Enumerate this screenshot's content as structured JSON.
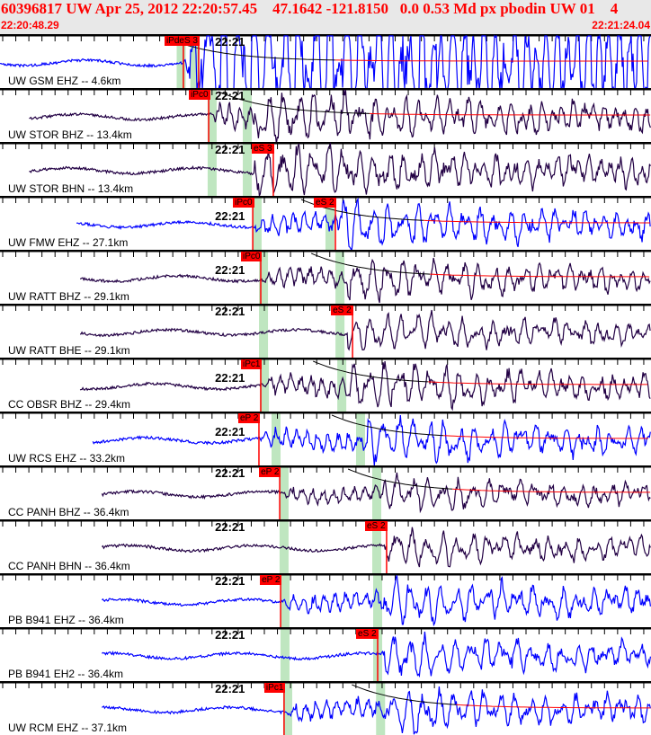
{
  "header": {
    "title": "60396817 UW Apr 25, 2012 22:20:57.45    47.1642 -121.8150   0.0 0.53 Md px pbodin UW 01    4",
    "start_time": "22:20:48.29",
    "end_time": "22:21:24.04",
    "minute_label": "22:21",
    "window_seconds": 35.75,
    "minute_offset_seconds": 11.71
  },
  "colors": {
    "pick": "#ff0000",
    "band": "#bfe6c0",
    "blue": "#0000ff",
    "purple": "#220044",
    "header_bg": "#e8e8e8"
  },
  "panels": [
    {
      "label": "UW GSM EHZ -- 4.6km",
      "color": "#0000ff",
      "start": 0.0,
      "picks": [
        {
          "text": "iPdeS 3",
          "t": 10.07,
          "t2": 10.91
        }
      ],
      "bands": [
        9.95,
        10.7
      ],
      "coda": true,
      "gain": 6
    },
    {
      "label": "UW STOR BHZ -- 13.4km",
      "color": "#220044",
      "start": 1.6,
      "picks": [
        {
          "text": "iPc0",
          "t": 11.46
        }
      ],
      "bands": [
        11.65,
        13.58
      ],
      "coda": true,
      "gain": 1.6
    },
    {
      "label": "UW STOR BHN -- 13.4km",
      "color": "#220044",
      "start": 1.6,
      "picks": [
        {
          "text": "eS 3",
          "t": 15.01
        }
      ],
      "bands": [
        11.65,
        13.58
      ],
      "coda": false,
      "gain": 1.6
    },
    {
      "label": "UW FMW EHZ -- 27.1km",
      "color": "#0000ff",
      "start": 4.2,
      "picks": [
        {
          "text": "iPc0",
          "t": 13.88
        },
        {
          "text": "eS 2",
          "t": 18.42
        }
      ],
      "bands": [
        14.12,
        18.12
      ],
      "coda": true,
      "gain": 1.4
    },
    {
      "label": "UW RATT BHZ -- 29.1km",
      "color": "#220044",
      "start": 4.4,
      "picks": [
        {
          "text": "iPc0",
          "t": 14.32
        }
      ],
      "bands": [
        14.47,
        18.67
      ],
      "coda": true,
      "gain": 1.2
    },
    {
      "label": "UW RATT BHE -- 29.1km",
      "color": "#220044",
      "start": 4.4,
      "picks": [
        {
          "text": "eS 2",
          "t": 19.36
        }
      ],
      "bands": [
        14.47,
        18.67
      ],
      "coda": false,
      "gain": 1.1
    },
    {
      "label": "CC OBSR BHZ -- 29.4km",
      "color": "#220044",
      "start": 4.4,
      "picks": [
        {
          "text": "iPc1",
          "t": 14.32
        }
      ],
      "bands": [
        14.52,
        18.77
      ],
      "coda": true,
      "gain": 1.3
    },
    {
      "label": "UW RCS EHZ -- 33.2km",
      "color": "#0000ff",
      "start": 5.1,
      "picks": [
        {
          "text": "eP 2",
          "t": 14.22
        }
      ],
      "bands": [
        15.16,
        19.8
      ],
      "coda": true,
      "gain": 1.3
    },
    {
      "label": "CC PANH BHZ -- 36.4km",
      "color": "#220044",
      "start": 5.6,
      "picks": [
        {
          "text": "eP 2",
          "t": 15.36
        }
      ],
      "bands": [
        15.6,
        20.69
      ],
      "coda": true,
      "gain": 1.0
    },
    {
      "label": "CC PANH BHN -- 36.4km",
      "color": "#220044",
      "start": 5.6,
      "picks": [
        {
          "text": "eS 2",
          "t": 21.23
        }
      ],
      "bands": [
        15.6,
        20.69
      ],
      "coda": false,
      "gain": 1.0
    },
    {
      "label": "PB B941 EHZ -- 36.4km",
      "color": "#0000ff",
      "start": 5.6,
      "picks": [
        {
          "text": "eP 2",
          "t": 15.41
        }
      ],
      "bands": [
        15.65,
        20.74
      ],
      "coda": false,
      "gain": 1.3
    },
    {
      "label": "PB B941 EH2 -- 36.4km",
      "color": "#0000ff",
      "start": 5.6,
      "picks": [
        {
          "text": "eS 2",
          "t": 20.74
        }
      ],
      "bands": [
        15.65,
        20.74
      ],
      "coda": false,
      "gain": 1.2
    },
    {
      "label": "UW RCM EHZ -- 37.1km",
      "color": "#0000ff",
      "start": 5.6,
      "picks": [
        {
          "text": "iPc1",
          "t": 15.6
        }
      ],
      "bands": [
        15.8,
        20.9
      ],
      "coda": true,
      "gain": 1.3
    }
  ]
}
